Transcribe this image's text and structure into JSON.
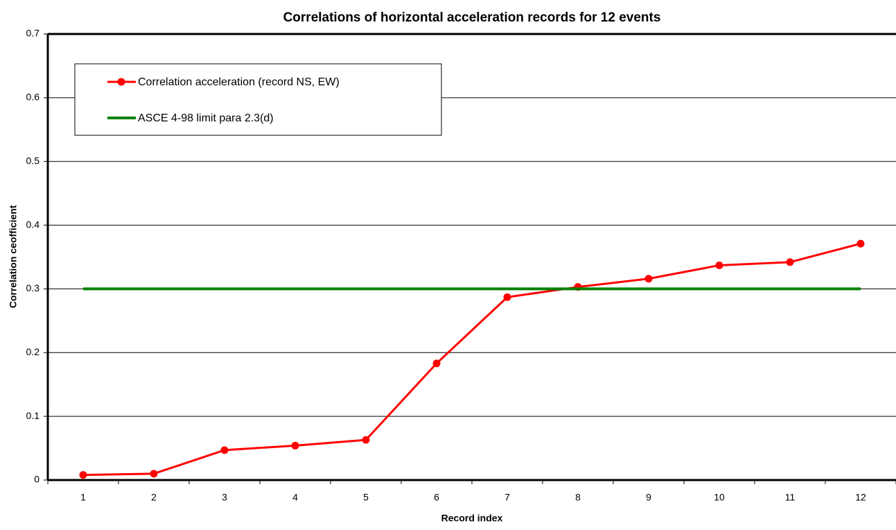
{
  "chart_data": {
    "type": "line",
    "title": "Correlations of horizontal acceleration records for 12 events",
    "x_label": "Record index",
    "y_label": "Correlation ceofficient",
    "categories": [
      "1",
      "2",
      "3",
      "4",
      "5",
      "6",
      "7",
      "8",
      "9",
      "10",
      "11",
      "12"
    ],
    "series": [
      {
        "name": "Correlation acceleration (record NS, EW)",
        "color": "#ff0000",
        "marker": true,
        "values": [
          0.008,
          0.01,
          0.047,
          0.054,
          0.063,
          0.183,
          0.287,
          0.303,
          0.316,
          0.337,
          0.342,
          0.371
        ]
      },
      {
        "name": "ASCE 4-98 limit para 2.3(d)",
        "color": "#008000",
        "marker": false,
        "values": [
          0.3,
          0.3,
          0.3,
          0.3,
          0.3,
          0.3,
          0.3,
          0.3,
          0.3,
          0.3,
          0.3,
          0.3
        ]
      }
    ],
    "ylim": [
      0,
      0.7
    ],
    "yticks": [
      0,
      0.1,
      0.2,
      0.3,
      0.4,
      0.5,
      0.6,
      0.7
    ],
    "grid": true,
    "legend": "upper left"
  }
}
